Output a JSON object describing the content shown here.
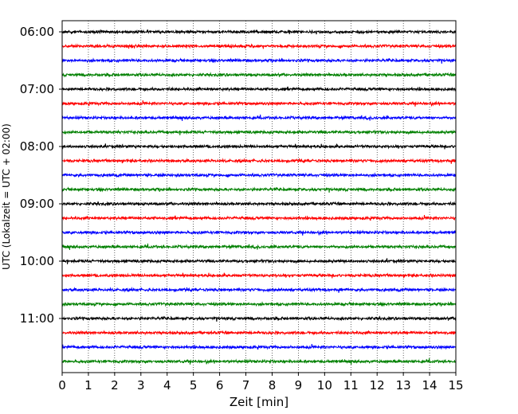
{
  "chart_data": {
    "type": "line",
    "title": "",
    "xlabel": "Zeit  [min]",
    "ylabel": "UTC (Lokalzeit = UTC + 02:00)",
    "xlim": [
      0,
      15
    ],
    "x_ticks": [
      "0",
      "1",
      "2",
      "3",
      "4",
      "5",
      "6",
      "7",
      "8",
      "9",
      "10",
      "11",
      "12",
      "13",
      "14",
      "15"
    ],
    "y_ticks": [
      "06:00",
      "07:00",
      "08:00",
      "09:00",
      "10:00",
      "11:00"
    ],
    "grid": "vertical dotted",
    "trace_interval_minutes": 15,
    "traces": [
      {
        "start": "06:00",
        "color": "#000000"
      },
      {
        "start": "06:15",
        "color": "#ff0000"
      },
      {
        "start": "06:30",
        "color": "#0000ff"
      },
      {
        "start": "06:45",
        "color": "#008000"
      },
      {
        "start": "07:00",
        "color": "#000000"
      },
      {
        "start": "07:15",
        "color": "#ff0000"
      },
      {
        "start": "07:30",
        "color": "#0000ff"
      },
      {
        "start": "07:45",
        "color": "#008000"
      },
      {
        "start": "08:00",
        "color": "#000000"
      },
      {
        "start": "08:15",
        "color": "#ff0000"
      },
      {
        "start": "08:30",
        "color": "#0000ff"
      },
      {
        "start": "08:45",
        "color": "#008000"
      },
      {
        "start": "09:00",
        "color": "#000000"
      },
      {
        "start": "09:15",
        "color": "#ff0000"
      },
      {
        "start": "09:30",
        "color": "#0000ff"
      },
      {
        "start": "09:45",
        "color": "#008000"
      },
      {
        "start": "10:00",
        "color": "#000000"
      },
      {
        "start": "10:15",
        "color": "#ff0000"
      },
      {
        "start": "10:30",
        "color": "#0000ff"
      },
      {
        "start": "10:45",
        "color": "#008000"
      },
      {
        "start": "11:00",
        "color": "#000000"
      },
      {
        "start": "11:15",
        "color": "#ff0000"
      },
      {
        "start": "11:30",
        "color": "#0000ff"
      },
      {
        "start": "11:45",
        "color": "#008000"
      }
    ]
  }
}
